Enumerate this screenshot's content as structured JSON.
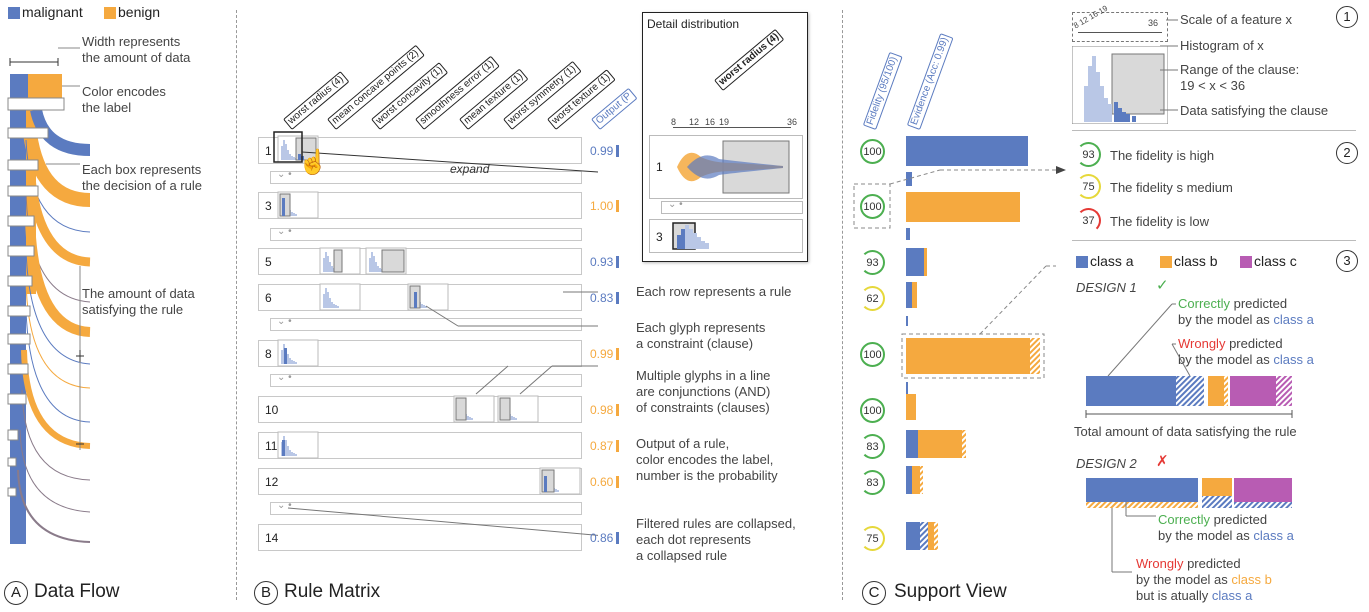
{
  "legend": {
    "malignant": "malignant",
    "benign": "benign"
  },
  "colors": {
    "blue": "#5b7bc0",
    "orange": "#f5a93f",
    "purple": "#b85cb3",
    "green": "#4caf50",
    "yellow": "#e6d83a",
    "red": "#e53935"
  },
  "panelA": {
    "letter": "A",
    "title": "Data Flow",
    "width_note": [
      "Width represents",
      "the amount of data"
    ],
    "color_note": [
      "Color encodes",
      "the label"
    ],
    "box_note": [
      "Each box represents",
      "the decision of a rule"
    ],
    "amount_note": [
      "The amount of data",
      "satisfying the rule"
    ]
  },
  "panelB": {
    "letter": "B",
    "title": "Rule Matrix",
    "features": [
      "worst radius (4)",
      "mean concave points (2)",
      "worst concavity (1)",
      "smoothness error (1)",
      "mean texture (1)",
      "worst symmetry (1)",
      "worst texture (1)"
    ],
    "output_header": "Output (P",
    "rows": [
      {
        "id": "1",
        "output": "0.99",
        "color": "blue"
      },
      {
        "id": "3",
        "output": "1.00",
        "color": "orange"
      },
      {
        "id": "5",
        "output": "0.93",
        "color": "blue"
      },
      {
        "id": "6",
        "output": "0.83",
        "color": "blue"
      },
      {
        "id": "8",
        "output": "0.99",
        "color": "orange"
      },
      {
        "id": "10",
        "output": "0.98",
        "color": "orange"
      },
      {
        "id": "11",
        "output": "0.87",
        "color": "orange"
      },
      {
        "id": "12",
        "output": "0.60",
        "color": "orange"
      },
      {
        "id": "14",
        "output": "0.86",
        "color": "blue"
      }
    ],
    "expand_label": "expand",
    "detail": {
      "title": "Detail distribution",
      "feature": "worst radius (4)",
      "ticks": [
        "8",
        "12",
        "16",
        "19",
        "36"
      ],
      "row1": "1",
      "row3": "3"
    },
    "notes": {
      "row": "Each row represents a rule",
      "glyph": [
        "Each glyph represents",
        "a constraint (clause)"
      ],
      "multi": [
        "Multiple glyphs in a line",
        "are conjunctions (AND)",
        "of constraints (clauses)"
      ],
      "output": [
        "Output of a rule,",
        "color encodes the label,",
        "number is the probability"
      ],
      "filtered": [
        "Filtered rules are collapsed,",
        "each dot represents",
        "a collapsed rule"
      ]
    }
  },
  "panelC": {
    "letter": "C",
    "title": "Support View",
    "fidelity_header": "Fidelity (95/100)",
    "evidence_header": "Evidence (Acc: 0.99)",
    "fidelity": [
      "100",
      "100",
      "93",
      "62",
      "100",
      "100",
      "83",
      "83",
      "75"
    ]
  },
  "legend1": {
    "num": "1",
    "scale_ticks": "8 12 16 19",
    "scale_end": "36",
    "scale": "Scale of a feature x",
    "hist": "Histogram of x",
    "range": [
      "Range of the clause:",
      "19 < x < 36"
    ],
    "satisfy": "Data satisfying the clause"
  },
  "legend2": {
    "num": "2",
    "items": [
      {
        "v": "93",
        "text": "The fidelity is high"
      },
      {
        "v": "75",
        "text": "The fidelity s medium"
      },
      {
        "v": "37",
        "text": "The fidelity is low"
      }
    ]
  },
  "legend3": {
    "num": "3",
    "classes": [
      "class a",
      "class b",
      "class c"
    ],
    "design1": "DESIGN 1",
    "check": "✓",
    "correct_word": "Correctly",
    "correct_rest": " predicted",
    "by_model_a": "by the model as ",
    "class_a": "class a",
    "wrong_word": "Wrongly",
    "wrong_rest": " predicted",
    "total": "Total amount of data satisfying the rule",
    "design2": "DESIGN 2",
    "cross": "✗",
    "class_b": "class b",
    "but": "but is atually "
  }
}
